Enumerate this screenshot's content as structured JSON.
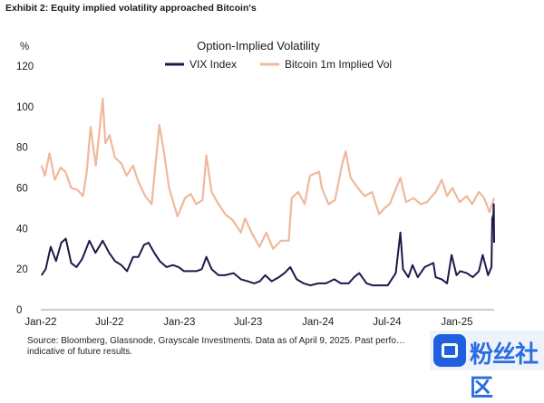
{
  "exhibit_label": "Exhibit 2: Equity implied volatility approached Bitcoin's",
  "source_note": "Source: Bloomberg, Glassnode, Grayscale Investments. Data as of April 9, 2025. Past perfo… indicative of future results.",
  "watermark_text": "粉丝社区",
  "chart_data": {
    "type": "line",
    "title": "Option-Implied Volatility",
    "ylabel": "%",
    "xlabel": "",
    "ylim": [
      0,
      120
    ],
    "yticks": [
      0,
      20,
      40,
      60,
      80,
      100,
      120
    ],
    "xlim": [
      "2022-01-01",
      "2025-04-09"
    ],
    "xticks": [
      {
        "date": "2022-01-01",
        "label": "Jan-22"
      },
      {
        "date": "2022-07-01",
        "label": "Jul-22"
      },
      {
        "date": "2023-01-01",
        "label": "Jan-23"
      },
      {
        "date": "2023-07-01",
        "label": "Jul-23"
      },
      {
        "date": "2024-01-01",
        "label": "Jan-24"
      },
      {
        "date": "2024-07-01",
        "label": "Jul-24"
      },
      {
        "date": "2025-01-01",
        "label": "Jan-25"
      }
    ],
    "grid": false,
    "legend_position": "top-center",
    "series": [
      {
        "name": "VIX Index",
        "color": "#1c1a4a",
        "points": [
          [
            "2022-01-03",
            17
          ],
          [
            "2022-01-14",
            20
          ],
          [
            "2022-01-27",
            31
          ],
          [
            "2022-02-10",
            24
          ],
          [
            "2022-02-24",
            33
          ],
          [
            "2022-03-08",
            35
          ],
          [
            "2022-03-22",
            23
          ],
          [
            "2022-04-05",
            21
          ],
          [
            "2022-04-20",
            25
          ],
          [
            "2022-05-09",
            34
          ],
          [
            "2022-05-25",
            28
          ],
          [
            "2022-06-13",
            34
          ],
          [
            "2022-06-30",
            28
          ],
          [
            "2022-07-15",
            24
          ],
          [
            "2022-08-01",
            22
          ],
          [
            "2022-08-16",
            19
          ],
          [
            "2022-09-01",
            26
          ],
          [
            "2022-09-15",
            26
          ],
          [
            "2022-09-30",
            32
          ],
          [
            "2022-10-12",
            33
          ],
          [
            "2022-10-27",
            28
          ],
          [
            "2022-11-10",
            24
          ],
          [
            "2022-11-28",
            21
          ],
          [
            "2022-12-15",
            22
          ],
          [
            "2022-12-30",
            21
          ],
          [
            "2023-01-13",
            19
          ],
          [
            "2023-01-31",
            19
          ],
          [
            "2023-02-15",
            19
          ],
          [
            "2023-03-01",
            20
          ],
          [
            "2023-03-13",
            26
          ],
          [
            "2023-03-27",
            20
          ],
          [
            "2023-04-14",
            17
          ],
          [
            "2023-05-01",
            17
          ],
          [
            "2023-05-24",
            18
          ],
          [
            "2023-06-12",
            15
          ],
          [
            "2023-06-30",
            14
          ],
          [
            "2023-07-17",
            13
          ],
          [
            "2023-08-01",
            14
          ],
          [
            "2023-08-15",
            17
          ],
          [
            "2023-09-01",
            14
          ],
          [
            "2023-09-20",
            16
          ],
          [
            "2023-10-05",
            18
          ],
          [
            "2023-10-20",
            21
          ],
          [
            "2023-11-06",
            15
          ],
          [
            "2023-11-24",
            13
          ],
          [
            "2023-12-12",
            12
          ],
          [
            "2024-01-02",
            13
          ],
          [
            "2024-01-22",
            13
          ],
          [
            "2024-02-13",
            15
          ],
          [
            "2024-03-01",
            13
          ],
          [
            "2024-03-22",
            13
          ],
          [
            "2024-04-05",
            16
          ],
          [
            "2024-04-19",
            18
          ],
          [
            "2024-05-08",
            13
          ],
          [
            "2024-05-24",
            12
          ],
          [
            "2024-06-14",
            12
          ],
          [
            "2024-07-03",
            12
          ],
          [
            "2024-07-24",
            18
          ],
          [
            "2024-08-05",
            38
          ],
          [
            "2024-08-12",
            20
          ],
          [
            "2024-08-26",
            16
          ],
          [
            "2024-09-06",
            22
          ],
          [
            "2024-09-20",
            16
          ],
          [
            "2024-10-08",
            21
          ],
          [
            "2024-10-31",
            23
          ],
          [
            "2024-11-06",
            16
          ],
          [
            "2024-11-22",
            15
          ],
          [
            "2024-12-06",
            13
          ],
          [
            "2024-12-18",
            27
          ],
          [
            "2024-12-31",
            17
          ],
          [
            "2025-01-10",
            19
          ],
          [
            "2025-01-27",
            18
          ],
          [
            "2025-02-12",
            16
          ],
          [
            "2025-02-28",
            19
          ],
          [
            "2025-03-10",
            27
          ],
          [
            "2025-03-24",
            17
          ],
          [
            "2025-04-02",
            21
          ],
          [
            "2025-04-04",
            45
          ],
          [
            "2025-04-07",
            47
          ],
          [
            "2025-04-08",
            52
          ],
          [
            "2025-04-09",
            33
          ]
        ]
      },
      {
        "name": "Bitcoin 1m Implied Vol",
        "color": "#f0b89c",
        "points": [
          [
            "2022-01-03",
            71
          ],
          [
            "2022-01-12",
            66
          ],
          [
            "2022-01-24",
            77
          ],
          [
            "2022-02-07",
            64
          ],
          [
            "2022-02-22",
            70
          ],
          [
            "2022-03-07",
            68
          ],
          [
            "2022-03-22",
            60
          ],
          [
            "2022-04-08",
            59
          ],
          [
            "2022-04-22",
            56
          ],
          [
            "2022-05-02",
            68
          ],
          [
            "2022-05-12",
            90
          ],
          [
            "2022-05-26",
            71
          ],
          [
            "2022-06-13",
            104
          ],
          [
            "2022-06-20",
            82
          ],
          [
            "2022-07-01",
            86
          ],
          [
            "2022-07-15",
            75
          ],
          [
            "2022-08-01",
            72
          ],
          [
            "2022-08-15",
            66
          ],
          [
            "2022-09-01",
            71
          ],
          [
            "2022-09-15",
            63
          ],
          [
            "2022-10-03",
            56
          ],
          [
            "2022-10-20",
            52
          ],
          [
            "2022-11-09",
            91
          ],
          [
            "2022-11-21",
            78
          ],
          [
            "2022-12-05",
            60
          ],
          [
            "2022-12-27",
            46
          ],
          [
            "2023-01-16",
            55
          ],
          [
            "2023-01-31",
            57
          ],
          [
            "2023-02-14",
            52
          ],
          [
            "2023-03-03",
            54
          ],
          [
            "2023-03-13",
            76
          ],
          [
            "2023-03-27",
            58
          ],
          [
            "2023-04-14",
            52
          ],
          [
            "2023-05-02",
            47
          ],
          [
            "2023-05-22",
            44
          ],
          [
            "2023-06-12",
            38
          ],
          [
            "2023-06-23",
            45
          ],
          [
            "2023-07-10",
            38
          ],
          [
            "2023-07-31",
            31
          ],
          [
            "2023-08-18",
            38
          ],
          [
            "2023-09-05",
            30
          ],
          [
            "2023-09-25",
            34
          ],
          [
            "2023-10-16",
            34
          ],
          [
            "2023-10-24",
            55
          ],
          [
            "2023-11-10",
            58
          ],
          [
            "2023-11-27",
            52
          ],
          [
            "2023-12-11",
            66
          ],
          [
            "2024-01-04",
            68
          ],
          [
            "2024-01-11",
            60
          ],
          [
            "2024-01-29",
            52
          ],
          [
            "2024-02-15",
            54
          ],
          [
            "2024-03-05",
            72
          ],
          [
            "2024-03-14",
            78
          ],
          [
            "2024-03-27",
            65
          ],
          [
            "2024-04-15",
            60
          ],
          [
            "2024-05-03",
            56
          ],
          [
            "2024-05-22",
            58
          ],
          [
            "2024-06-10",
            47
          ],
          [
            "2024-06-24",
            50
          ],
          [
            "2024-07-08",
            52
          ],
          [
            "2024-08-05",
            65
          ],
          [
            "2024-08-20",
            53
          ],
          [
            "2024-09-09",
            55
          ],
          [
            "2024-09-27",
            52
          ],
          [
            "2024-10-14",
            53
          ],
          [
            "2024-11-06",
            58
          ],
          [
            "2024-11-22",
            64
          ],
          [
            "2024-12-06",
            56
          ],
          [
            "2024-12-20",
            60
          ],
          [
            "2025-01-08",
            53
          ],
          [
            "2025-01-27",
            56
          ],
          [
            "2025-02-10",
            52
          ],
          [
            "2025-02-28",
            58
          ],
          [
            "2025-03-14",
            55
          ],
          [
            "2025-03-28",
            48
          ],
          [
            "2025-04-09",
            55
          ]
        ]
      }
    ]
  }
}
